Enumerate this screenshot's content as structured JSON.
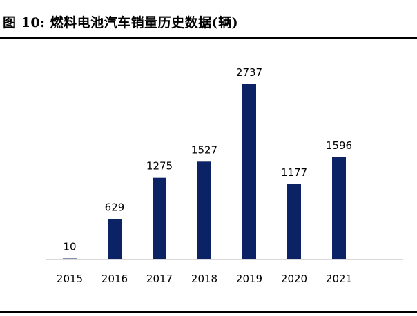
{
  "figure": {
    "title": "图 10:  燃料电池汽车销量历史数据(辆)"
  },
  "chart_data": {
    "type": "bar",
    "title": "图 10:  燃料电池汽车销量历史数据(辆)",
    "categories": [
      "2015",
      "2016",
      "2017",
      "2018",
      "2019",
      "2020",
      "2021"
    ],
    "values": [
      10,
      629,
      1275,
      1527,
      2737,
      1177,
      1596
    ],
    "data_labels": [
      "10",
      "629",
      "1275",
      "1527",
      "2737",
      "1177",
      "1596"
    ],
    "xlabel": "",
    "ylabel": "",
    "ylim": [
      0,
      3000
    ],
    "grid": false,
    "legend": "none",
    "bar_color": "#0b2265",
    "axis_color": "#d9d9d9"
  }
}
